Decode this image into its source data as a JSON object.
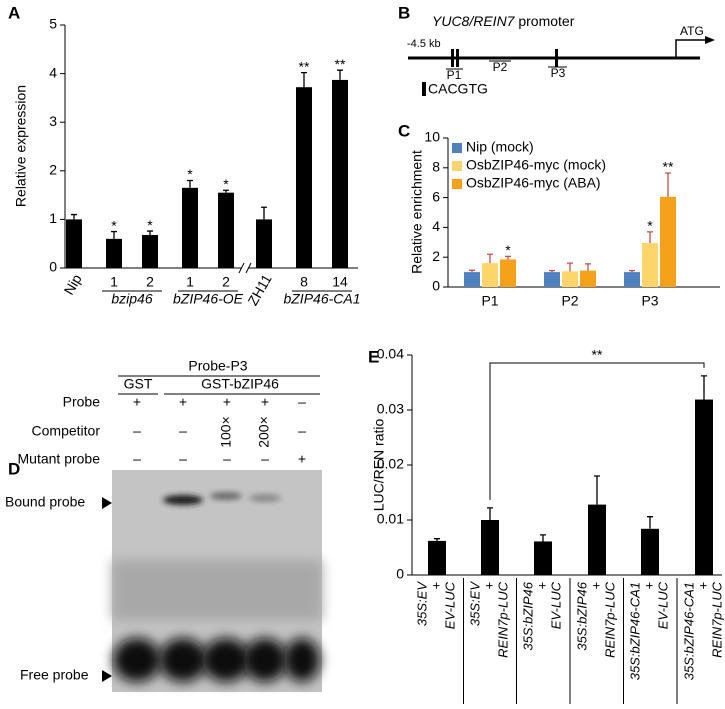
{
  "chart_data": [
    {
      "type": "bar",
      "panel_label": "A",
      "ylabel": "Relative expression",
      "categories": [
        "Nip",
        "1",
        "2",
        "1",
        "2",
        "ZH11",
        "8",
        "14"
      ],
      "groups": [
        null,
        "bzip46",
        "bzip46",
        "bZIP46-OE",
        "bZIP46-OE",
        null,
        "bZIP46-CA1",
        "bZIP46-CA1"
      ],
      "values": [
        1.0,
        0.6,
        0.68,
        1.65,
        1.55,
        1.0,
        3.72,
        3.87
      ],
      "errors": [
        0.1,
        0.15,
        0.08,
        0.15,
        0.05,
        0.25,
        0.3,
        0.2
      ],
      "significance": [
        null,
        "*",
        "*",
        "*",
        "*",
        null,
        "**",
        "**"
      ],
      "color": "#000000",
      "ylim": [
        0,
        5
      ],
      "yticks": [
        0,
        1,
        2,
        3,
        4,
        5
      ],
      "axis_break": true
    },
    {
      "type": "bar",
      "panel_label": "C",
      "ylabel": "Relative enrichment",
      "categories": [
        "P1",
        "P2",
        "P3"
      ],
      "series": [
        {
          "name": "Nip (mock)",
          "color": "#4f81bd",
          "values": [
            1.0,
            1.0,
            1.0
          ],
          "errors": [
            0.12,
            0.1,
            0.1
          ],
          "significance": [
            null,
            null,
            null
          ]
        },
        {
          "name": "OsbZIP46-myc (mock)",
          "color": "#fdd56b",
          "values": [
            1.6,
            1.05,
            2.95
          ],
          "errors": [
            0.6,
            0.55,
            0.75
          ],
          "significance": [
            null,
            null,
            "*"
          ]
        },
        {
          "name": "OsbZIP46-myc (ABA)",
          "color": "#f5a21a",
          "values": [
            1.85,
            1.1,
            6.05
          ],
          "errors": [
            0.2,
            0.45,
            1.6
          ],
          "significance": [
            "*",
            null,
            "**"
          ]
        }
      ],
      "ylim": [
        0,
        10
      ],
      "yticks": [
        0,
        2,
        4,
        6,
        8,
        10
      ],
      "legend": "upper left"
    },
    {
      "type": "bar",
      "panel_label": "E",
      "ylabel": "LUC/REN ratio",
      "categories": [
        [
          "35S:EV",
          "+",
          "EV-LUC"
        ],
        [
          "35S:EV",
          "+",
          "REIN7p-LUC"
        ],
        [
          "35S:bZIP46",
          "+",
          "EV-LUC"
        ],
        [
          "35S:bZIP46",
          "+",
          "REIN7p-LUC"
        ],
        [
          "35S:bZIP46-CA1",
          "+",
          "EV-LUC"
        ],
        [
          "35S:bZIP46-CA1",
          "+",
          "REIN7p-LUC"
        ]
      ],
      "values": [
        0.0062,
        0.01,
        0.0061,
        0.0128,
        0.0084,
        0.0319
      ],
      "errors": [
        0.0004,
        0.0022,
        0.0012,
        0.0052,
        0.0022,
        0.0043
      ],
      "color": "#000000",
      "ylim": [
        0,
        0.04
      ],
      "yticks": [
        0,
        0.01,
        0.02,
        0.03,
        0.04
      ],
      "bracket": {
        "label": "**",
        "categories": [
          1,
          5
        ]
      }
    }
  ],
  "diagram": {
    "panel_label": "B",
    "gene": "YUC8/REIN7",
    "title": "promoter",
    "scale": "-4.5 kb",
    "start": "ATG",
    "probes": [
      "P1",
      "P2",
      "P3"
    ],
    "motif": "CACGTG"
  },
  "gel": {
    "panel_label": "D",
    "title": "Probe-P3",
    "lane_groups": [
      "GST",
      "GST-bZIP46"
    ],
    "rows": [
      {
        "label": "Probe",
        "cells": [
          "+",
          "+",
          "+",
          "+",
          "–"
        ]
      },
      {
        "label": "Competitor",
        "cells": [
          "–",
          "–",
          "100×",
          "200×",
          "–"
        ]
      },
      {
        "label": "Mutant probe",
        "cells": [
          "–",
          "–",
          "–",
          "–",
          "+"
        ]
      }
    ],
    "bands": [
      "Bound probe",
      "Free probe"
    ]
  }
}
